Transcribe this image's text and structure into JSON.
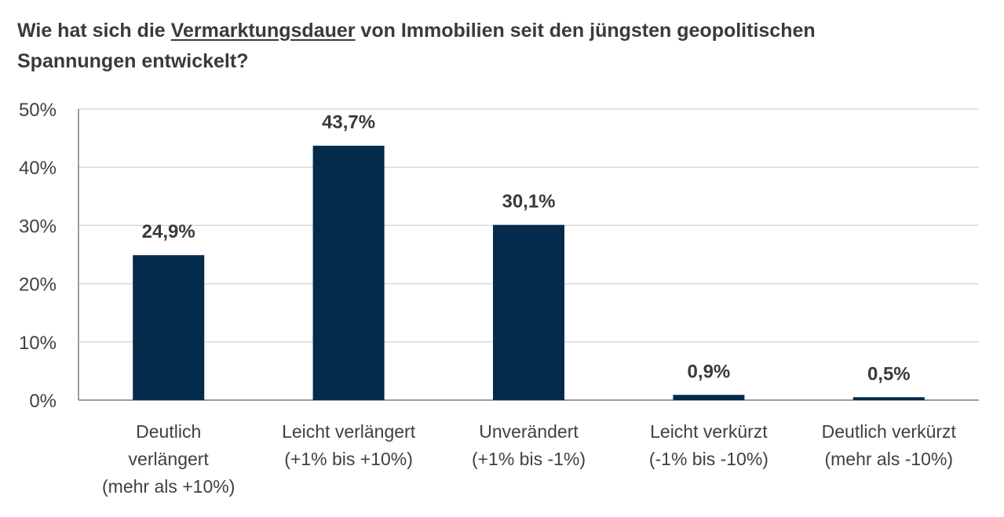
{
  "title": {
    "before": "Wie hat sich die ",
    "underlined": "Vermarktungsdauer",
    "after": " von Immobilien seit den jüngsten geopolitischen Spannungen entwickelt?"
  },
  "chart_data": {
    "type": "bar",
    "categories": [
      [
        "Deutlich",
        "verlängert",
        "(mehr als +10%)"
      ],
      [
        "Leicht verlängert",
        "(+1% bis +10%)"
      ],
      [
        "Unverändert",
        "(+1% bis -1%)"
      ],
      [
        "Leicht verkürzt",
        "(-1% bis -10%)"
      ],
      [
        "Deutlich verkürzt",
        "(mehr als -10%)"
      ]
    ],
    "values": [
      24.9,
      43.7,
      30.1,
      0.9,
      0.5
    ],
    "data_labels": [
      "24,9%",
      "43,7%",
      "30,1%",
      "0,9%",
      "0,5%"
    ],
    "ylim": [
      0,
      50
    ],
    "yticks": [
      0,
      10,
      20,
      30,
      40,
      50
    ],
    "ytick_labels": [
      "0%",
      "10%",
      "20%",
      "30%",
      "40%",
      "50%"
    ],
    "grid": true,
    "legend": "none",
    "bar_color": "#042A4C"
  }
}
